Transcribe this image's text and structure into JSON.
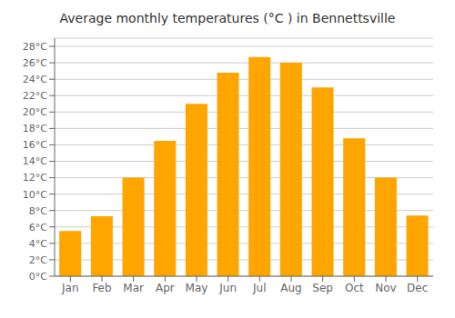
{
  "chart_data": {
    "type": "bar",
    "title": "Average monthly temperatures (°C ) in Bennettsville",
    "categories": [
      "Jan",
      "Feb",
      "Mar",
      "Apr",
      "May",
      "Jun",
      "Jul",
      "Aug",
      "Sep",
      "Oct",
      "Nov",
      "Dec"
    ],
    "values": [
      5.5,
      7.3,
      12.0,
      16.5,
      21.0,
      24.8,
      26.7,
      26.0,
      23.0,
      16.8,
      12.0,
      7.4
    ],
    "color": "#FFA500",
    "ylim": [
      0,
      29
    ],
    "yticks": [
      {
        "value": 0,
        "label": "0°C"
      },
      {
        "value": 2,
        "label": "2°C"
      },
      {
        "value": 4,
        "label": "4°C"
      },
      {
        "value": 6,
        "label": "6°C"
      },
      {
        "value": 8,
        "label": "8°C"
      },
      {
        "value": 10,
        "label": "10°C"
      },
      {
        "value": 12,
        "label": "12°C"
      },
      {
        "value": 14,
        "label": "14°C"
      },
      {
        "value": 16,
        "label": "16°C"
      },
      {
        "value": 18,
        "label": "18°C"
      },
      {
        "value": 20,
        "label": "20°C"
      },
      {
        "value": 22,
        "label": "22°C"
      },
      {
        "value": 24,
        "label": "24°C"
      },
      {
        "value": 26,
        "label": "26°C"
      },
      {
        "value": 28,
        "label": "28°C"
      }
    ],
    "grid": true
  }
}
